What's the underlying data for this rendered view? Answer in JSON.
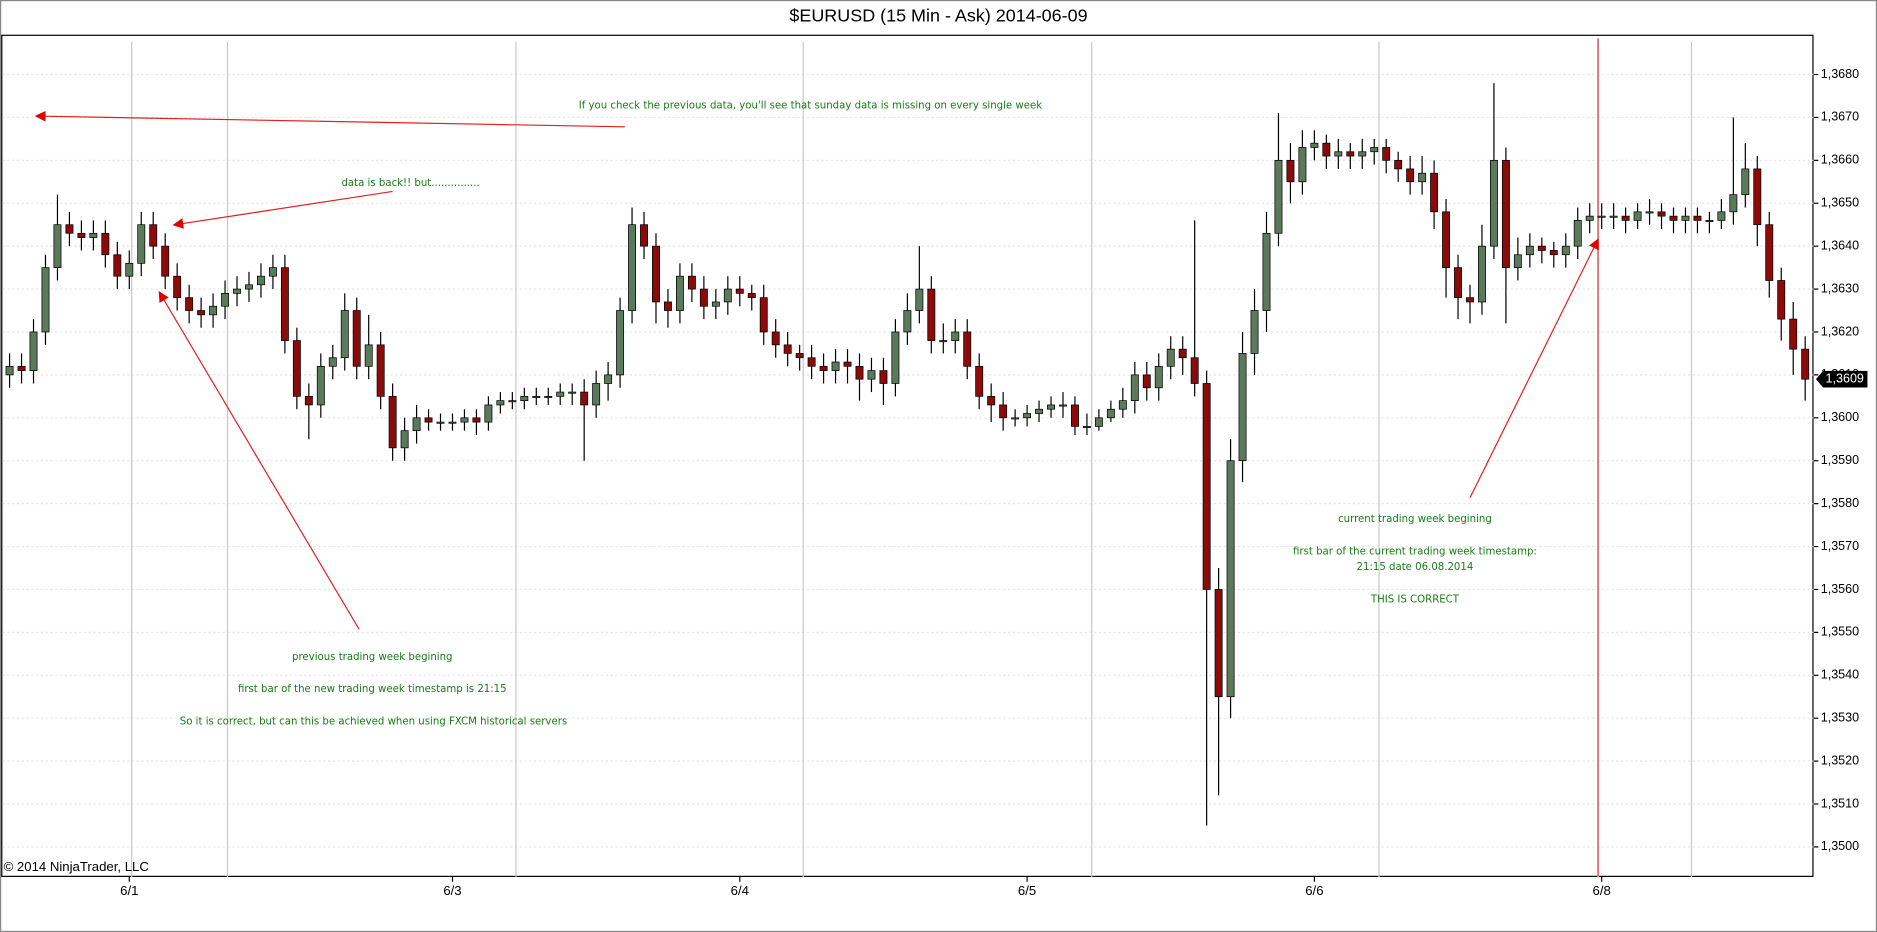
{
  "chart_data": {
    "type": "candlestick",
    "title": "$EURUSD (15 Min - Ask)  2014-06-09",
    "footer": "© 2014 NinjaTrader, LLC",
    "up_color": "#5b7a5b",
    "down_color": "#8b0a0a",
    "grid": true,
    "ylim": [
      1.3493,
      1.3689
    ],
    "yticks": [
      {
        "value": 1.35,
        "label": "1,3500"
      },
      {
        "value": 1.351,
        "label": "1,3510"
      },
      {
        "value": 1.352,
        "label": "1,3520"
      },
      {
        "value": 1.353,
        "label": "1,3530"
      },
      {
        "value": 1.354,
        "label": "1,3540"
      },
      {
        "value": 1.355,
        "label": "1,3550"
      },
      {
        "value": 1.356,
        "label": "1,3560"
      },
      {
        "value": 1.357,
        "label": "1,3570"
      },
      {
        "value": 1.358,
        "label": "1,3580"
      },
      {
        "value": 1.359,
        "label": "1,3590"
      },
      {
        "value": 1.36,
        "label": "1,3600"
      },
      {
        "value": 1.361,
        "label": "1,3610"
      },
      {
        "value": 1.362,
        "label": "1,3620"
      },
      {
        "value": 1.363,
        "label": "1,3630"
      },
      {
        "value": 1.364,
        "label": "1,3640"
      },
      {
        "value": 1.365,
        "label": "1,3650"
      },
      {
        "value": 1.366,
        "label": "1,3660"
      },
      {
        "value": 1.367,
        "label": "1,3670"
      },
      {
        "value": 1.368,
        "label": "1,3680"
      }
    ],
    "last_price": {
      "value": 1.3609,
      "label": "1,3609"
    },
    "annotations": [
      "If you check the previous data, you'll see that sunday data is missing on every single week",
      "data is back!!  but...............",
      "previous trading week begining",
      "first bar of the new trading week timestamp is 21:15",
      "So it is correct, but can this be achieved when using FXCM historical servers",
      "current trading week begining",
      "first bar of the current trading week timestamp:",
      "21:15 date 06.08.2014",
      "THIS IS CORRECT"
    ],
    "categories": [
      null,
      null,
      null,
      null,
      null,
      null,
      null,
      null,
      null,
      null,
      "6/1",
      null,
      null,
      null,
      null,
      null,
      null,
      null,
      null,
      null,
      null,
      null,
      null,
      null,
      null,
      null,
      null,
      null,
      null,
      null,
      null,
      null,
      null,
      null,
      null,
      null,
      null,
      "6/3",
      null,
      null,
      null,
      null,
      null,
      null,
      null,
      null,
      null,
      null,
      null,
      null,
      null,
      null,
      null,
      null,
      null,
      null,
      null,
      null,
      null,
      null,
      null,
      "6/4",
      null,
      null,
      null,
      null,
      null,
      null,
      null,
      null,
      null,
      null,
      null,
      null,
      null,
      null,
      null,
      null,
      null,
      null,
      null,
      null,
      null,
      null,
      null,
      "6/5",
      null,
      null,
      null,
      null,
      null,
      null,
      null,
      null,
      null,
      null,
      null,
      null,
      null,
      null,
      null,
      null,
      null,
      null,
      null,
      null,
      null,
      null,
      null,
      "6/6",
      null,
      null,
      null,
      null,
      null,
      null,
      null,
      null,
      null,
      null,
      null,
      null,
      null,
      null,
      null,
      null,
      null,
      null,
      null,
      null,
      null,
      null,
      null,
      "6/8",
      null,
      null,
      null,
      null,
      null,
      null,
      null,
      null,
      null,
      null,
      null,
      null,
      null,
      null,
      null,
      null,
      null
    ],
    "open": [
      1.361,
      1.3612,
      1.3611,
      1.362,
      1.3635,
      1.3645,
      1.3643,
      1.3642,
      1.3643,
      1.3638,
      1.3633,
      1.3636,
      1.3645,
      1.364,
      1.3633,
      1.3628,
      1.3625,
      1.3624,
      1.3626,
      1.3629,
      1.363,
      1.3631,
      1.3633,
      1.3635,
      1.3618,
      1.3605,
      1.3603,
      1.3612,
      1.3614,
      1.3625,
      1.3612,
      1.3617,
      1.3605,
      1.3593,
      1.3597,
      1.36,
      1.3599,
      1.3599,
      1.3599,
      1.36,
      1.3599,
      1.3603,
      1.3604,
      1.3604,
      1.3605,
      1.3605,
      1.3605,
      1.3606,
      1.3606,
      1.3603,
      1.3608,
      1.361,
      1.3625,
      1.3645,
      1.364,
      1.3627,
      1.3625,
      1.3633,
      1.363,
      1.3626,
      1.3627,
      1.363,
      1.3629,
      1.3628,
      1.362,
      1.3617,
      1.3615,
      1.3614,
      1.3612,
      1.3611,
      1.3613,
      1.3612,
      1.3609,
      1.3611,
      1.3608,
      1.362,
      1.3625,
      1.363,
      1.3618,
      1.3618,
      1.362,
      1.3612,
      1.3605,
      1.3603,
      1.36,
      1.36,
      1.3601,
      1.3602,
      1.3603,
      1.3603,
      1.3598,
      1.3598,
      1.36,
      1.3602,
      1.3604,
      1.361,
      1.3607,
      1.3612,
      1.3616,
      1.3614,
      1.3608,
      1.356,
      1.3535,
      1.359,
      1.3615,
      1.3625,
      1.3643,
      1.366,
      1.3655,
      1.3663,
      1.3664,
      1.3661,
      1.3662,
      1.3661,
      1.3662,
      1.3663,
      1.366,
      1.3658,
      1.3655,
      1.3657,
      1.3648,
      1.3635,
      1.3628,
      1.3627,
      1.364,
      1.366,
      1.3635,
      1.3638,
      1.364,
      1.3639,
      1.3638,
      1.364,
      1.3646,
      1.3647,
      1.3647,
      1.3647,
      1.3646,
      1.3648,
      1.3648,
      1.3647,
      1.3646,
      1.3647,
      1.3646,
      1.3646,
      1.3648,
      1.3652,
      1.3658,
      1.3645,
      1.3632,
      1.3623,
      1.3616
    ],
    "high": [
      1.3615,
      1.3615,
      1.3623,
      1.3638,
      1.3652,
      1.3648,
      1.3646,
      1.3646,
      1.3646,
      1.3641,
      1.3639,
      1.3648,
      1.3648,
      1.3643,
      1.3636,
      1.3631,
      1.3628,
      1.3629,
      1.3632,
      1.3633,
      1.3634,
      1.3636,
      1.3638,
      1.3638,
      1.3621,
      1.3608,
      1.3615,
      1.3617,
      1.3629,
      1.3628,
      1.3624,
      1.362,
      1.3608,
      1.36,
      1.3603,
      1.3602,
      1.3601,
      1.3601,
      1.3602,
      1.3602,
      1.3605,
      1.3606,
      1.3606,
      1.3607,
      1.3607,
      1.3607,
      1.3608,
      1.3608,
      1.3609,
      1.3611,
      1.3613,
      1.3628,
      1.3649,
      1.3648,
      1.3643,
      1.363,
      1.3636,
      1.3636,
      1.3633,
      1.363,
      1.3633,
      1.3633,
      1.3631,
      1.3631,
      1.3623,
      1.362,
      1.3617,
      1.3617,
      1.3615,
      1.3616,
      1.3616,
      1.3615,
      1.3614,
      1.3614,
      1.3623,
      1.3629,
      1.364,
      1.3633,
      1.3622,
      1.3623,
      1.3623,
      1.3615,
      1.3608,
      1.3606,
      1.3602,
      1.3603,
      1.3604,
      1.3605,
      1.3606,
      1.3605,
      1.3601,
      1.3602,
      1.3604,
      1.3607,
      1.3613,
      1.3613,
      1.3615,
      1.3619,
      1.3619,
      1.3646,
      1.3611,
      1.3565,
      1.3595,
      1.362,
      1.363,
      1.3648,
      1.3671,
      1.3664,
      1.3667,
      1.3667,
      1.3666,
      1.3665,
      1.3664,
      1.3665,
      1.3665,
      1.3665,
      1.3662,
      1.3661,
      1.3661,
      1.366,
      1.3651,
      1.3638,
      1.3631,
      1.3645,
      1.3678,
      1.3663,
      1.3642,
      1.3643,
      1.3642,
      1.3641,
      1.3643,
      1.3649,
      1.365,
      1.365,
      1.365,
      1.3649,
      1.365,
      1.3651,
      1.365,
      1.3649,
      1.3649,
      1.3649,
      1.3648,
      1.3651,
      1.367,
      1.3664,
      1.3661,
      1.3648,
      1.3635,
      1.3627,
      1.3619
    ],
    "low": [
      1.3607,
      1.3608,
      1.3608,
      1.3617,
      1.3632,
      1.364,
      1.3639,
      1.3639,
      1.3635,
      1.363,
      1.363,
      1.3633,
      1.3637,
      1.363,
      1.3625,
      1.3622,
      1.3621,
      1.3621,
      1.3623,
      1.3626,
      1.3627,
      1.3628,
      1.363,
      1.3615,
      1.3602,
      1.3595,
      1.36,
      1.3609,
      1.3611,
      1.3609,
      1.3609,
      1.3602,
      1.359,
      1.359,
      1.3594,
      1.3597,
      1.3597,
      1.3597,
      1.3597,
      1.3596,
      1.3597,
      1.3601,
      1.3602,
      1.3602,
      1.3603,
      1.3603,
      1.3603,
      1.3603,
      1.359,
      1.36,
      1.3604,
      1.3607,
      1.3622,
      1.3637,
      1.3622,
      1.3621,
      1.3622,
      1.3627,
      1.3623,
      1.3623,
      1.3624,
      1.3626,
      1.3625,
      1.3617,
      1.3614,
      1.3612,
      1.3611,
      1.3609,
      1.3608,
      1.3608,
      1.3608,
      1.3604,
      1.3606,
      1.3603,
      1.3605,
      1.3617,
      1.3622,
      1.3615,
      1.3615,
      1.3615,
      1.3609,
      1.3602,
      1.3599,
      1.3597,
      1.3598,
      1.3598,
      1.3599,
      1.36,
      1.36,
      1.3596,
      1.3596,
      1.3597,
      1.3599,
      1.36,
      1.3601,
      1.3604,
      1.3604,
      1.3609,
      1.361,
      1.3605,
      1.3505,
      1.3512,
      1.353,
      1.3585,
      1.361,
      1.362,
      1.364,
      1.365,
      1.3652,
      1.366,
      1.3658,
      1.3658,
      1.3658,
      1.3658,
      1.3659,
      1.3657,
      1.3655,
      1.3652,
      1.3652,
      1.3644,
      1.3628,
      1.3623,
      1.3622,
      1.3624,
      1.3637,
      1.3622,
      1.3632,
      1.3635,
      1.3636,
      1.3635,
      1.3635,
      1.3637,
      1.3643,
      1.3644,
      1.3644,
      1.3643,
      1.3644,
      1.3645,
      1.3644,
      1.3643,
      1.3643,
      1.3643,
      1.3643,
      1.3644,
      1.3645,
      1.3649,
      1.364,
      1.3628,
      1.3618,
      1.361,
      1.3604
    ],
    "close": [
      1.3612,
      1.3611,
      1.362,
      1.3635,
      1.3645,
      1.3643,
      1.3642,
      1.3643,
      1.3638,
      1.3633,
      1.3636,
      1.3645,
      1.364,
      1.3633,
      1.3628,
      1.3625,
      1.3624,
      1.3626,
      1.3629,
      1.363,
      1.3631,
      1.3633,
      1.3635,
      1.3618,
      1.3605,
      1.3603,
      1.3612,
      1.3614,
      1.3625,
      1.3612,
      1.3617,
      1.3605,
      1.3593,
      1.3597,
      1.36,
      1.3599,
      1.3599,
      1.3599,
      1.36,
      1.3599,
      1.3603,
      1.3604,
      1.3604,
      1.3605,
      1.3605,
      1.3605,
      1.3606,
      1.3606,
      1.3603,
      1.3608,
      1.361,
      1.3625,
      1.3645,
      1.364,
      1.3627,
      1.3625,
      1.3633,
      1.363,
      1.3626,
      1.3627,
      1.363,
      1.3629,
      1.3628,
      1.362,
      1.3617,
      1.3615,
      1.3614,
      1.3612,
      1.3611,
      1.3613,
      1.3612,
      1.3609,
      1.3611,
      1.3608,
      1.362,
      1.3625,
      1.363,
      1.3618,
      1.3618,
      1.362,
      1.3612,
      1.3605,
      1.3603,
      1.36,
      1.36,
      1.3601,
      1.3602,
      1.3603,
      1.3603,
      1.3598,
      1.3598,
      1.36,
      1.3602,
      1.3604,
      1.361,
      1.3607,
      1.3612,
      1.3616,
      1.3614,
      1.3608,
      1.356,
      1.3535,
      1.359,
      1.3615,
      1.3625,
      1.3643,
      1.366,
      1.3655,
      1.3663,
      1.3664,
      1.3661,
      1.3662,
      1.3661,
      1.3662,
      1.3663,
      1.366,
      1.3658,
      1.3655,
      1.3657,
      1.3648,
      1.3635,
      1.3628,
      1.3627,
      1.364,
      1.366,
      1.3635,
      1.3638,
      1.364,
      1.3639,
      1.3638,
      1.364,
      1.3646,
      1.3647,
      1.3647,
      1.3647,
      1.3646,
      1.3648,
      1.3648,
      1.3647,
      1.3646,
      1.3647,
      1.3646,
      1.3646,
      1.3648,
      1.3652,
      1.3658,
      1.3645,
      1.3632,
      1.3623,
      1.3616,
      1.3609
    ]
  }
}
